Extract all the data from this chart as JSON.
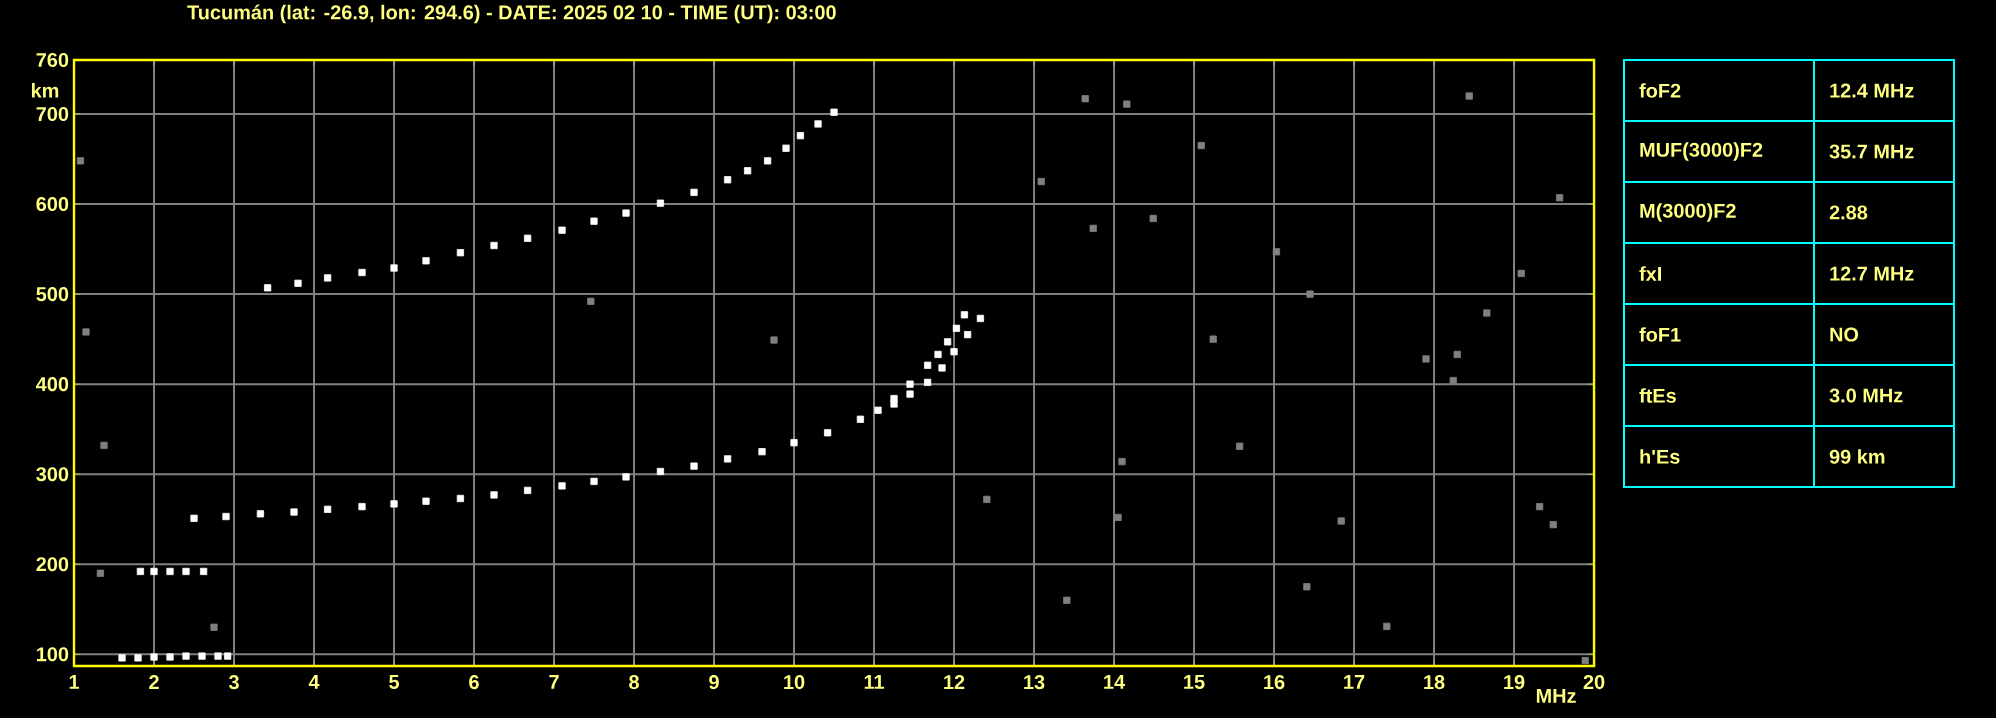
{
  "chart_data": {
    "type": "scatter",
    "title": "Tucumán (lat: -26.9, lon: 294.6) - DATE: 2025 02 10 - TIME (UT): 03:00",
    "xlabel": "MHz",
    "ylabel": "km",
    "xlim": [
      1,
      20
    ],
    "ylim": [
      87,
      760
    ],
    "xticks": [
      1,
      2,
      3,
      4,
      5,
      6,
      7,
      8,
      9,
      10,
      11,
      12,
      13,
      14,
      15,
      16,
      17,
      18,
      19,
      20
    ],
    "yticks": [
      100,
      200,
      300,
      400,
      500,
      600,
      700,
      760
    ],
    "grid": true,
    "marker": "square",
    "annotations": [
      "foF2",
      "12.4 MHz",
      "MUF(3000)F2",
      "35.7 MHz",
      "M(3000)F2",
      "2.88",
      "fxI",
      "12.7 MHz",
      "foF1",
      "NO",
      "ftEs",
      "3.0 MHz",
      "h'Es",
      "99 km"
    ],
    "series": [
      {
        "color": "#ffffff",
        "x": [
          1.6,
          1.8,
          2.0,
          2.2,
          2.4,
          2.6,
          2.8,
          2.92
        ],
        "values": [
          96,
          96,
          97,
          97,
          98,
          98,
          98,
          98
        ]
      },
      {
        "color": "#ffffff",
        "x": [
          1.83,
          2.0,
          2.2,
          2.4,
          2.62
        ],
        "values": [
          192,
          192,
          192,
          192,
          192
        ]
      },
      {
        "color": "#ffffff",
        "x": [
          2.5,
          2.9,
          3.33,
          3.75,
          4.17,
          4.6,
          5.0,
          5.4,
          5.83,
          6.25,
          6.67,
          7.1,
          7.5,
          7.9,
          8.33,
          8.75,
          9.17,
          9.6,
          10.0,
          10.42,
          10.83,
          11.05,
          11.25,
          11.45,
          11.67,
          11.8,
          11.92,
          12.03,
          12.13
        ],
        "values": [
          251,
          253,
          256,
          258,
          261,
          264,
          267,
          270,
          273,
          277,
          282,
          287,
          292,
          297,
          303,
          309,
          317,
          325,
          335,
          346,
          361,
          371,
          384,
          400,
          421,
          433,
          447,
          462,
          477
        ]
      },
      {
        "color": "#ffffff",
        "x": [
          11.25,
          11.45,
          11.67,
          11.85,
          12.0,
          12.17,
          12.33
        ],
        "values": [
          378,
          389,
          402,
          418,
          436,
          455,
          473
        ]
      },
      {
        "color": "#ffffff",
        "x": [
          3.42,
          3.8,
          4.17,
          4.6,
          5.0,
          5.4,
          5.83,
          6.25,
          6.67,
          7.1,
          7.5,
          7.9,
          8.33,
          8.75,
          9.17,
          9.42,
          9.67,
          9.9,
          10.08,
          10.3,
          10.5
        ],
        "values": [
          507,
          512,
          518,
          524,
          529,
          537,
          546,
          554,
          562,
          571,
          581,
          590,
          601,
          613,
          627,
          637,
          648,
          662,
          676,
          689,
          702
        ]
      },
      {
        "color": "#808080",
        "x": [
          13.64,
          15.09,
          13.09,
          13.74,
          19.09,
          16.45,
          18.66,
          18.29,
          18.24,
          14.1,
          14.05,
          16.84,
          19.49,
          18.44,
          19.89,
          14.16,
          14.49,
          16.03,
          17.9,
          15.24,
          12.41,
          16.41,
          17.41,
          19.32,
          13.41,
          15.57,
          19.57,
          1.08,
          1.15,
          1.375,
          1.33,
          2.75,
          9.75,
          7.46
        ],
        "values": [
          717,
          665,
          625,
          573,
          523,
          500,
          479,
          433,
          404,
          314,
          252,
          248,
          244,
          720,
          93,
          711,
          584,
          547,
          428,
          450,
          272,
          175,
          131,
          264,
          160,
          331,
          607,
          648,
          458,
          332,
          190,
          130,
          449,
          492
        ]
      }
    ]
  }
}
